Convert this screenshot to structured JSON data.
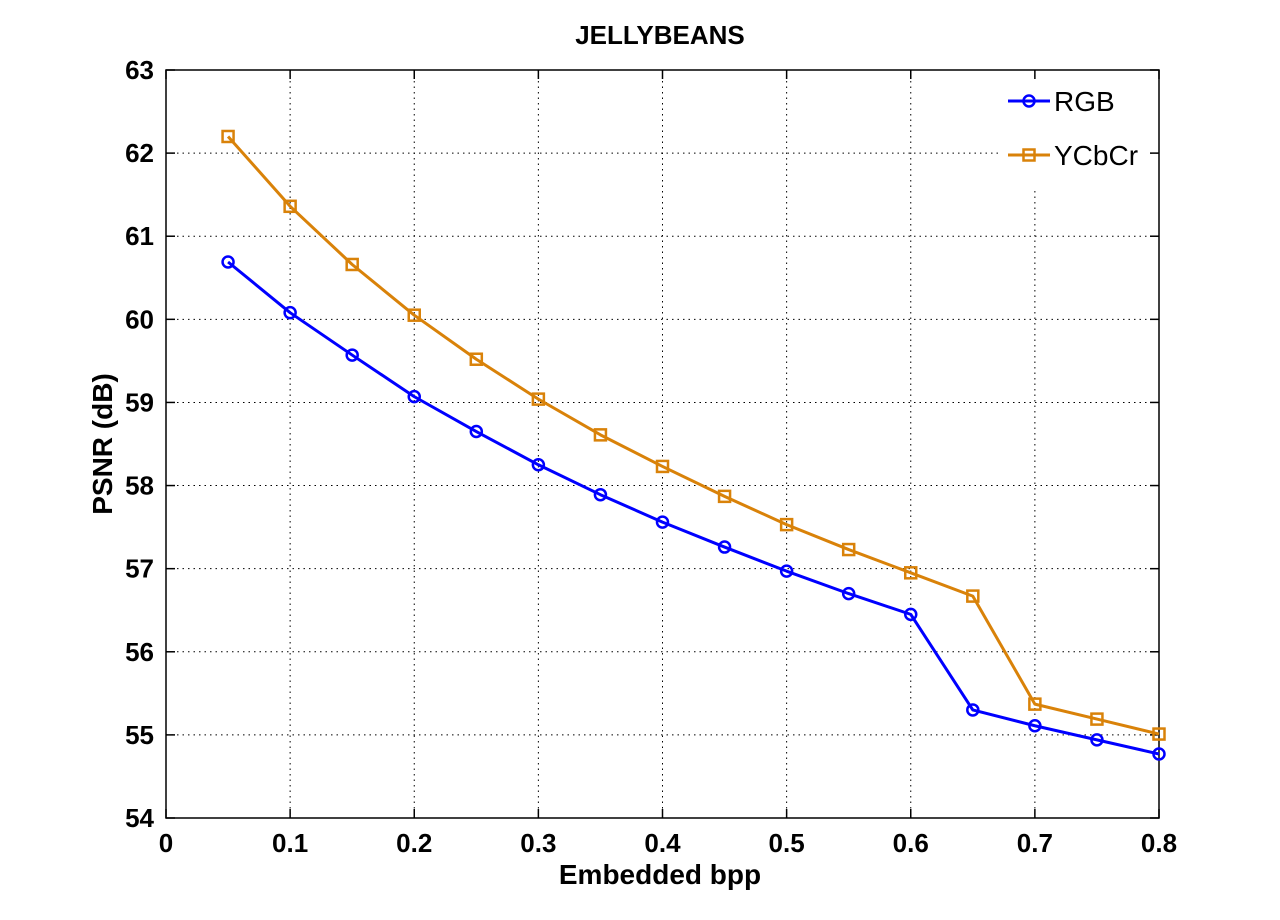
{
  "chart_data": {
    "type": "line",
    "title": "JELLYBEANS",
    "xlabel": "Embedded bpp",
    "ylabel": "PSNR (dB)",
    "xlim": [
      0,
      0.8
    ],
    "ylim": [
      54,
      63
    ],
    "x_ticks": [
      0,
      0.1,
      0.2,
      0.3,
      0.4,
      0.5,
      0.6,
      0.7,
      0.8
    ],
    "x_tick_labels": [
      "0",
      "0.1",
      "0.2",
      "0.3",
      "0.4",
      "0.5",
      "0.6",
      "0.7",
      "0.8"
    ],
    "y_ticks": [
      54,
      55,
      56,
      57,
      58,
      59,
      60,
      61,
      62,
      63
    ],
    "y_tick_labels": [
      "54",
      "55",
      "56",
      "57",
      "58",
      "59",
      "60",
      "61",
      "62",
      "63"
    ],
    "grid": true,
    "legend_position": "top-right",
    "x": [
      0.05,
      0.1,
      0.15,
      0.2,
      0.25,
      0.3,
      0.35,
      0.4,
      0.45,
      0.5,
      0.55,
      0.6,
      0.65,
      0.7,
      0.75,
      0.8
    ],
    "series": [
      {
        "name": "RGB",
        "color": "#0000ff",
        "marker": "circle",
        "values": [
          60.69,
          60.08,
          59.57,
          59.07,
          58.65,
          58.25,
          57.89,
          57.56,
          57.26,
          56.97,
          56.7,
          56.45,
          55.3,
          55.11,
          54.94,
          54.77
        ]
      },
      {
        "name": "YCbCr",
        "color": "#d98209",
        "marker": "square",
        "values": [
          62.2,
          61.36,
          60.66,
          60.05,
          59.52,
          59.04,
          58.61,
          58.23,
          57.87,
          57.53,
          57.23,
          56.95,
          56.67,
          55.37,
          55.19,
          55.01
        ]
      }
    ]
  }
}
